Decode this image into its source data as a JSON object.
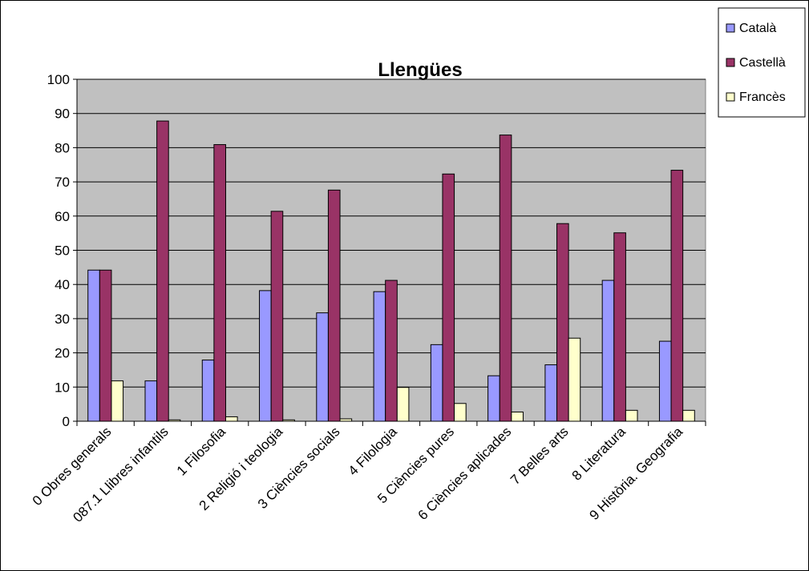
{
  "chart_data": {
    "type": "bar",
    "title": "Llengües",
    "xlabel": "",
    "ylabel": "",
    "ylim": [
      0,
      100
    ],
    "yticks": [
      0,
      10,
      20,
      30,
      40,
      50,
      60,
      70,
      80,
      90,
      100
    ],
    "grid": true,
    "legend_position": "top-right",
    "plot_background": "#c0c0c0",
    "categories": [
      "0 Obres generals",
      "087.1 Llibres infantils",
      "1 Filosofia",
      "2 Religió i teologia",
      "3 Ciències socials",
      "4 Filologia",
      "5 Ciències pures",
      "6 Ciències aplicades",
      "7 Belles arts",
      "8 Literatura",
      "9 Història. Geografia"
    ],
    "series": [
      {
        "name": "Català",
        "color": "#9999ff",
        "values": [
          44.2,
          11.8,
          17.9,
          38.2,
          31.7,
          37.9,
          22.4,
          13.3,
          16.5,
          41.2,
          23.4
        ]
      },
      {
        "name": "Castellà",
        "color": "#993366",
        "values": [
          44.2,
          87.8,
          80.9,
          61.4,
          67.6,
          41.2,
          72.3,
          83.7,
          57.8,
          55.1,
          73.4
        ]
      },
      {
        "name": "Francès",
        "color": "#ffffcc",
        "values": [
          11.8,
          0.4,
          1.3,
          0.4,
          0.7,
          9.9,
          5.2,
          2.7,
          24.3,
          3.2,
          3.2
        ]
      }
    ]
  }
}
